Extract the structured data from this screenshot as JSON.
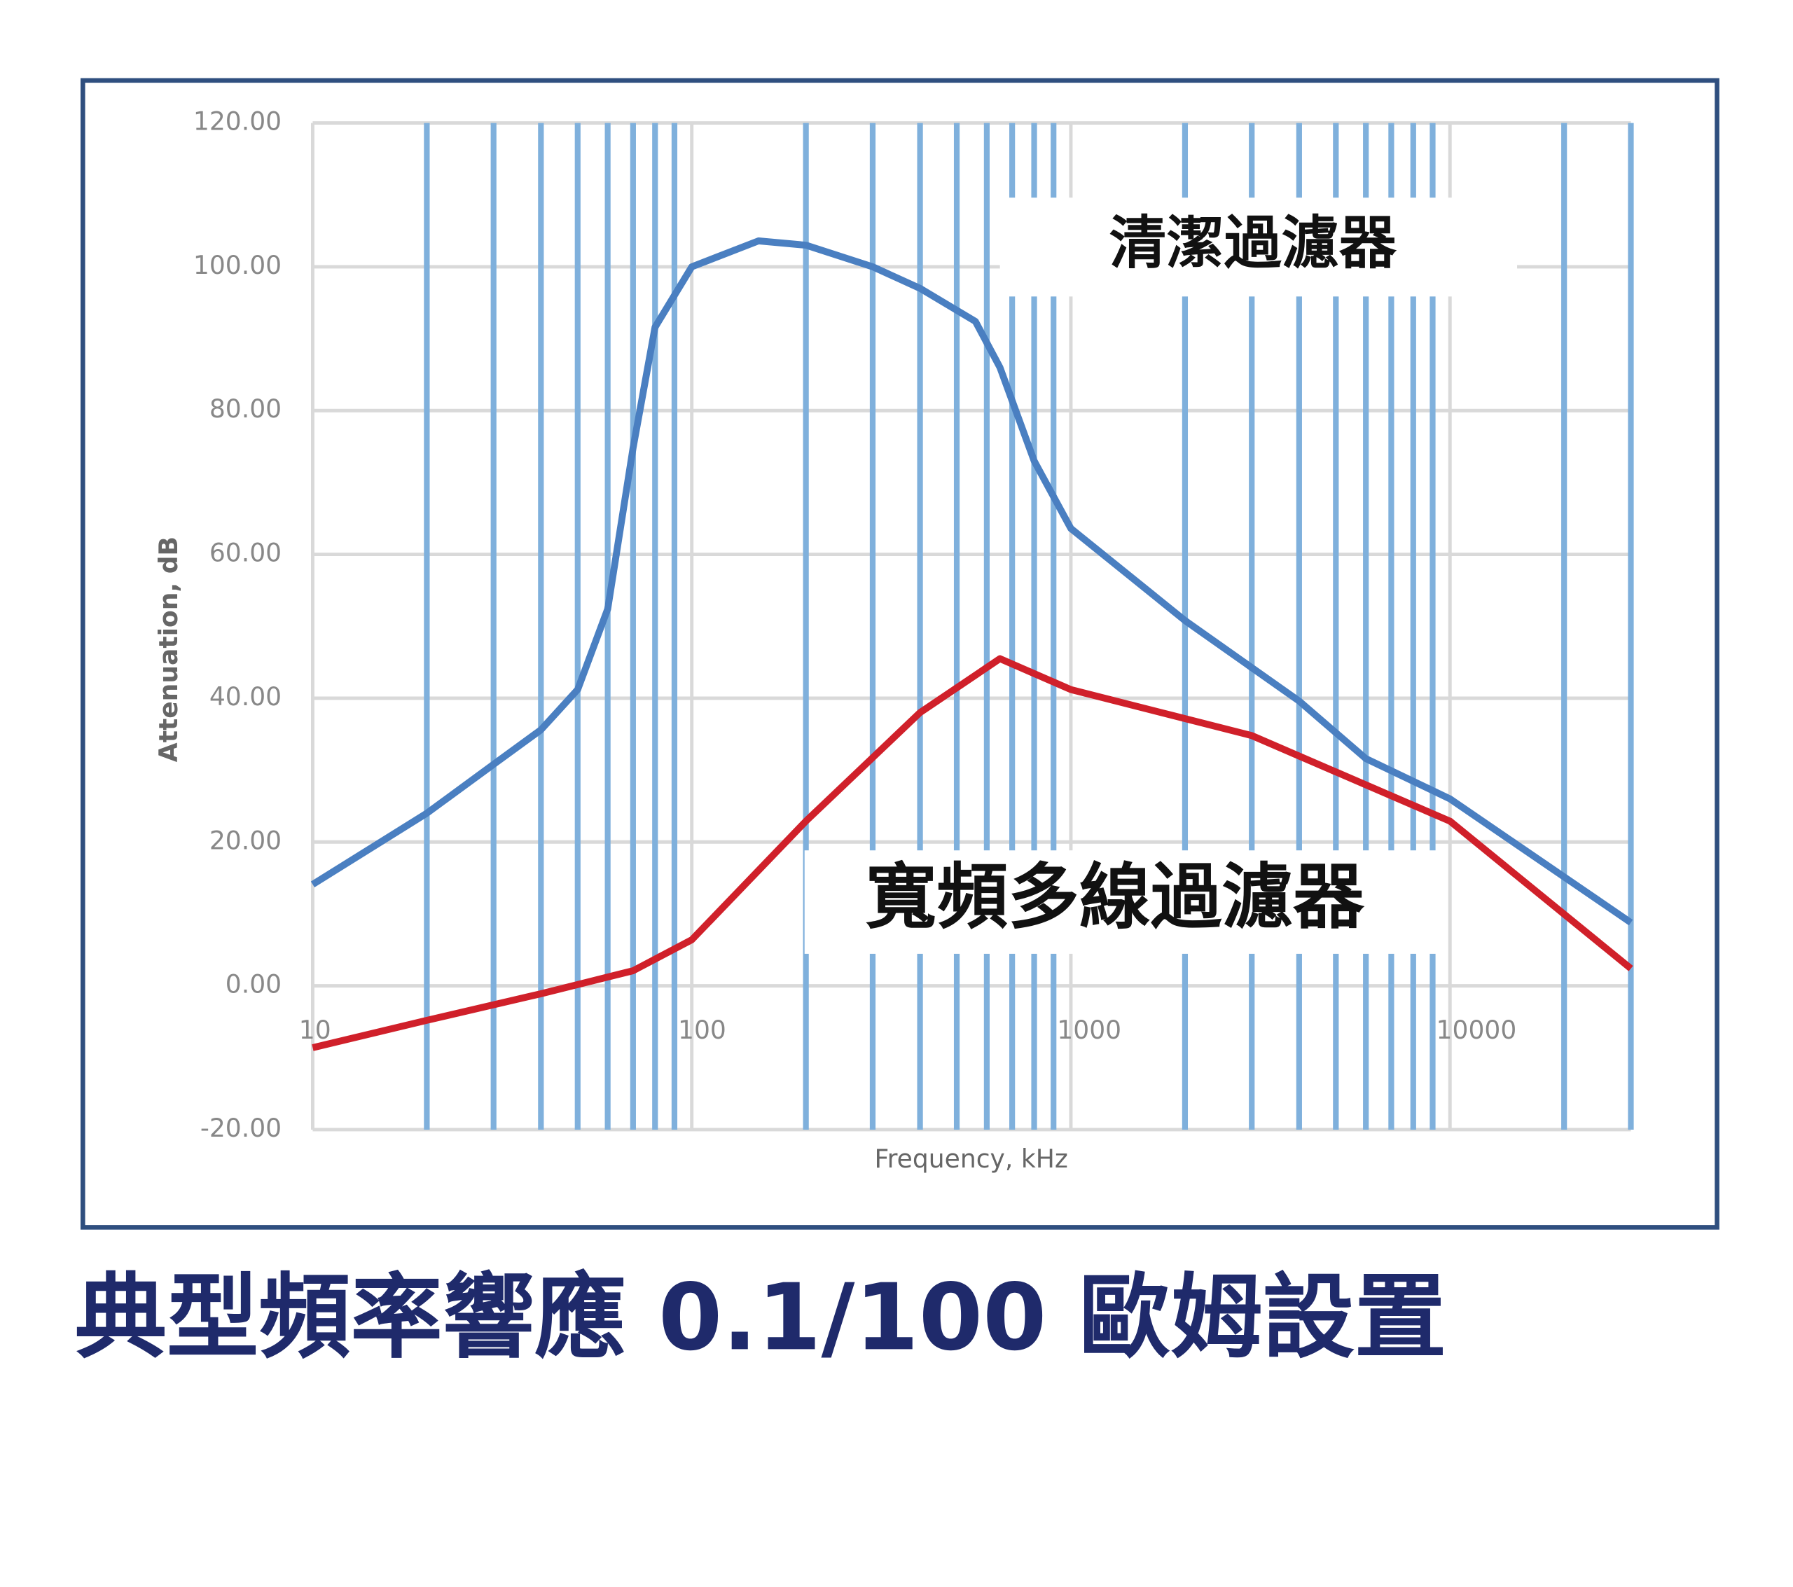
{
  "chart_data": {
    "type": "line",
    "caption": "典型頻率響應 0.1/100 歐姆設置",
    "xlabel": "Frequency, kHz",
    "ylabel": "Attenuation, dB",
    "xscale": "log",
    "xlim": [
      10,
      30000
    ],
    "ylim": [
      -20,
      120
    ],
    "xticks": [
      10,
      100,
      1000,
      10000
    ],
    "x_minor_ticks": [
      20,
      30,
      40,
      50,
      60,
      70,
      80,
      90,
      200,
      300,
      400,
      500,
      600,
      700,
      800,
      900,
      2000,
      3000,
      4000,
      5000,
      6000,
      7000,
      8000,
      9000,
      20000,
      30000
    ],
    "yticks": [
      {
        "value": -20,
        "label": "-20.00"
      },
      {
        "value": 0,
        "label": "0.00"
      },
      {
        "value": 20,
        "label": "20.00"
      },
      {
        "value": 40,
        "label": "40.00"
      },
      {
        "value": 60,
        "label": "60.00"
      },
      {
        "value": 80,
        "label": "80.00"
      },
      {
        "value": 100,
        "label": "100.00"
      },
      {
        "value": 120,
        "label": "120.00"
      }
    ],
    "grid": true,
    "series": [
      {
        "name": "清潔過濾器",
        "color": "#4a7fc1",
        "x": [
          10,
          20,
          30,
          40,
          50,
          60,
          70,
          80,
          100,
          150,
          200,
          300,
          400,
          560,
          650,
          800,
          1000,
          2000,
          4000,
          6000,
          10000,
          30000
        ],
        "values": [
          14.1,
          24,
          30.8,
          35.6,
          41.2,
          52.4,
          74.8,
          91.6,
          100,
          103.6,
          103,
          100,
          97,
          92.4,
          86,
          73,
          63.6,
          50.8,
          39.6,
          31.6,
          26,
          8.8
        ]
      },
      {
        "name": "寬頻多線過濾器",
        "color": "#d0202a",
        "x": [
          10,
          20,
          40,
          70,
          100,
          200,
          400,
          650,
          1000,
          3000,
          10000,
          30000
        ],
        "values": [
          -8.6,
          -4.8,
          -1.1,
          2.1,
          6.4,
          22.9,
          38,
          45.5,
          41.2,
          34.8,
          22.9,
          2.4
        ]
      }
    ]
  }
}
